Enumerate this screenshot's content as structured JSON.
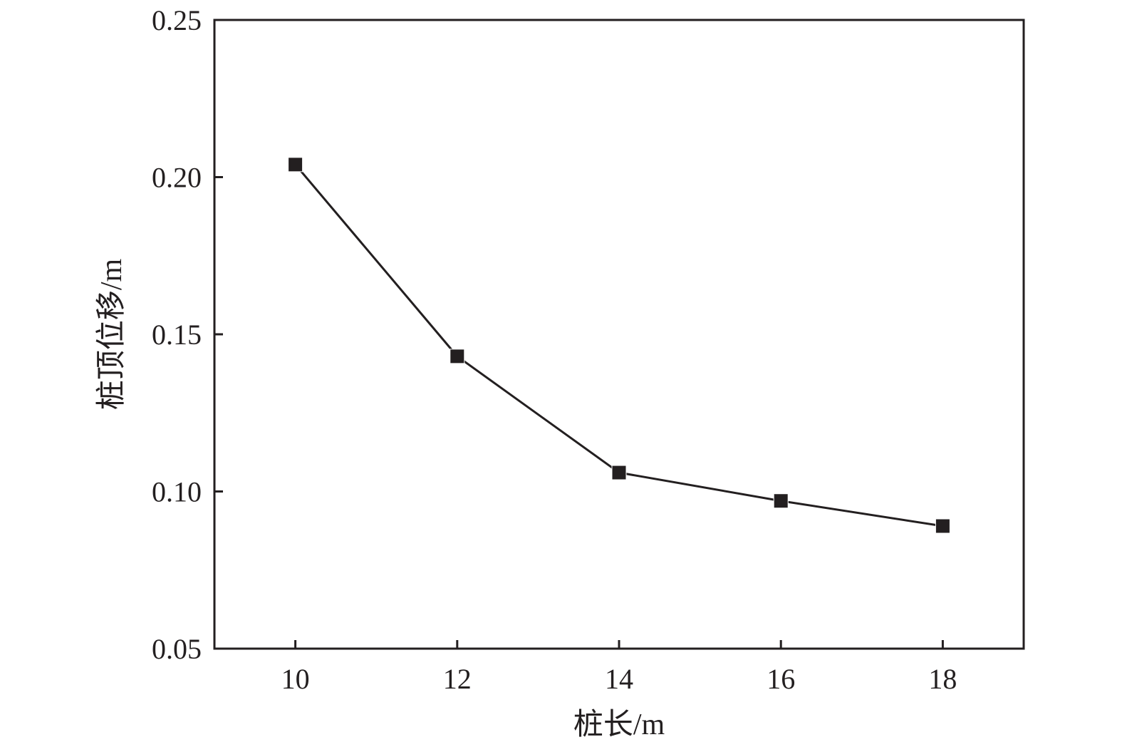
{
  "chart_data": {
    "type": "line",
    "title": "",
    "xlabel": "桩长/m",
    "ylabel": "桩顶位移/m",
    "xlim": [
      9,
      19
    ],
    "ylim": [
      0.05,
      0.25
    ],
    "xticks": [
      10,
      12,
      14,
      16,
      18
    ],
    "yticks": [
      0.05,
      0.1,
      0.15,
      0.2,
      0.25
    ],
    "xtick_labels": [
      "10",
      "12",
      "14",
      "16",
      "18"
    ],
    "ytick_labels": [
      "0.05",
      "0.10",
      "0.15",
      "0.20",
      "0.25"
    ],
    "grid": false,
    "legend": "none",
    "marker": "square",
    "color": "#231f20",
    "series": [
      {
        "x": [
          10,
          12,
          14,
          16,
          18
        ],
        "values": [
          0.204,
          0.143,
          0.106,
          0.097,
          0.089
        ]
      }
    ]
  }
}
